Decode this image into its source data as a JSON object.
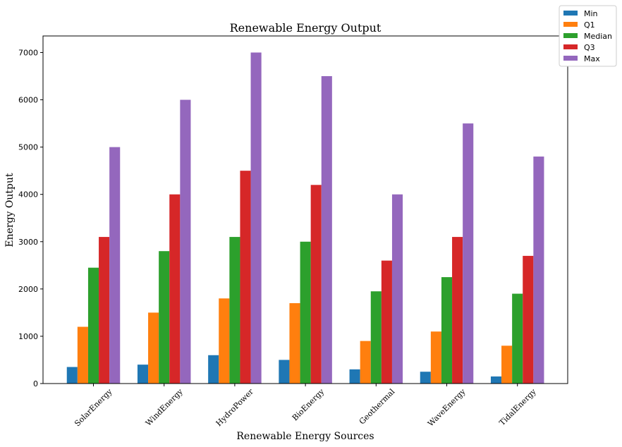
{
  "chart_data": {
    "type": "bar",
    "title": "Renewable Energy Output",
    "xlabel": "Renewable Energy Sources",
    "ylabel": "Energy Output",
    "categories": [
      "SolarEnergy",
      "WindEnergy",
      "HydroPower",
      "BioEnergy",
      "Geothermal",
      "WaveEnergy",
      "TidalEnergy"
    ],
    "series": [
      {
        "name": "Min",
        "color": "#1f77b4",
        "values": [
          350,
          400,
          600,
          500,
          300,
          250,
          150
        ]
      },
      {
        "name": "Q1",
        "color": "#ff7f0e",
        "values": [
          1200,
          1500,
          1800,
          1700,
          900,
          1100,
          800
        ]
      },
      {
        "name": "Median",
        "color": "#2ca02c",
        "values": [
          2450,
          2800,
          3100,
          3000,
          1950,
          2250,
          1900
        ]
      },
      {
        "name": "Q3",
        "color": "#d62728",
        "values": [
          3100,
          4000,
          4500,
          4200,
          2600,
          3100,
          2700
        ]
      },
      {
        "name": "Max",
        "color": "#9467bd",
        "values": [
          5000,
          6000,
          7000,
          6500,
          4000,
          5500,
          4800
        ]
      }
    ],
    "ylim": [
      0,
      7350
    ],
    "yticks": [
      0,
      1000,
      2000,
      3000,
      4000,
      5000,
      6000,
      7000
    ],
    "grid": false,
    "legend_position": "top-right"
  }
}
